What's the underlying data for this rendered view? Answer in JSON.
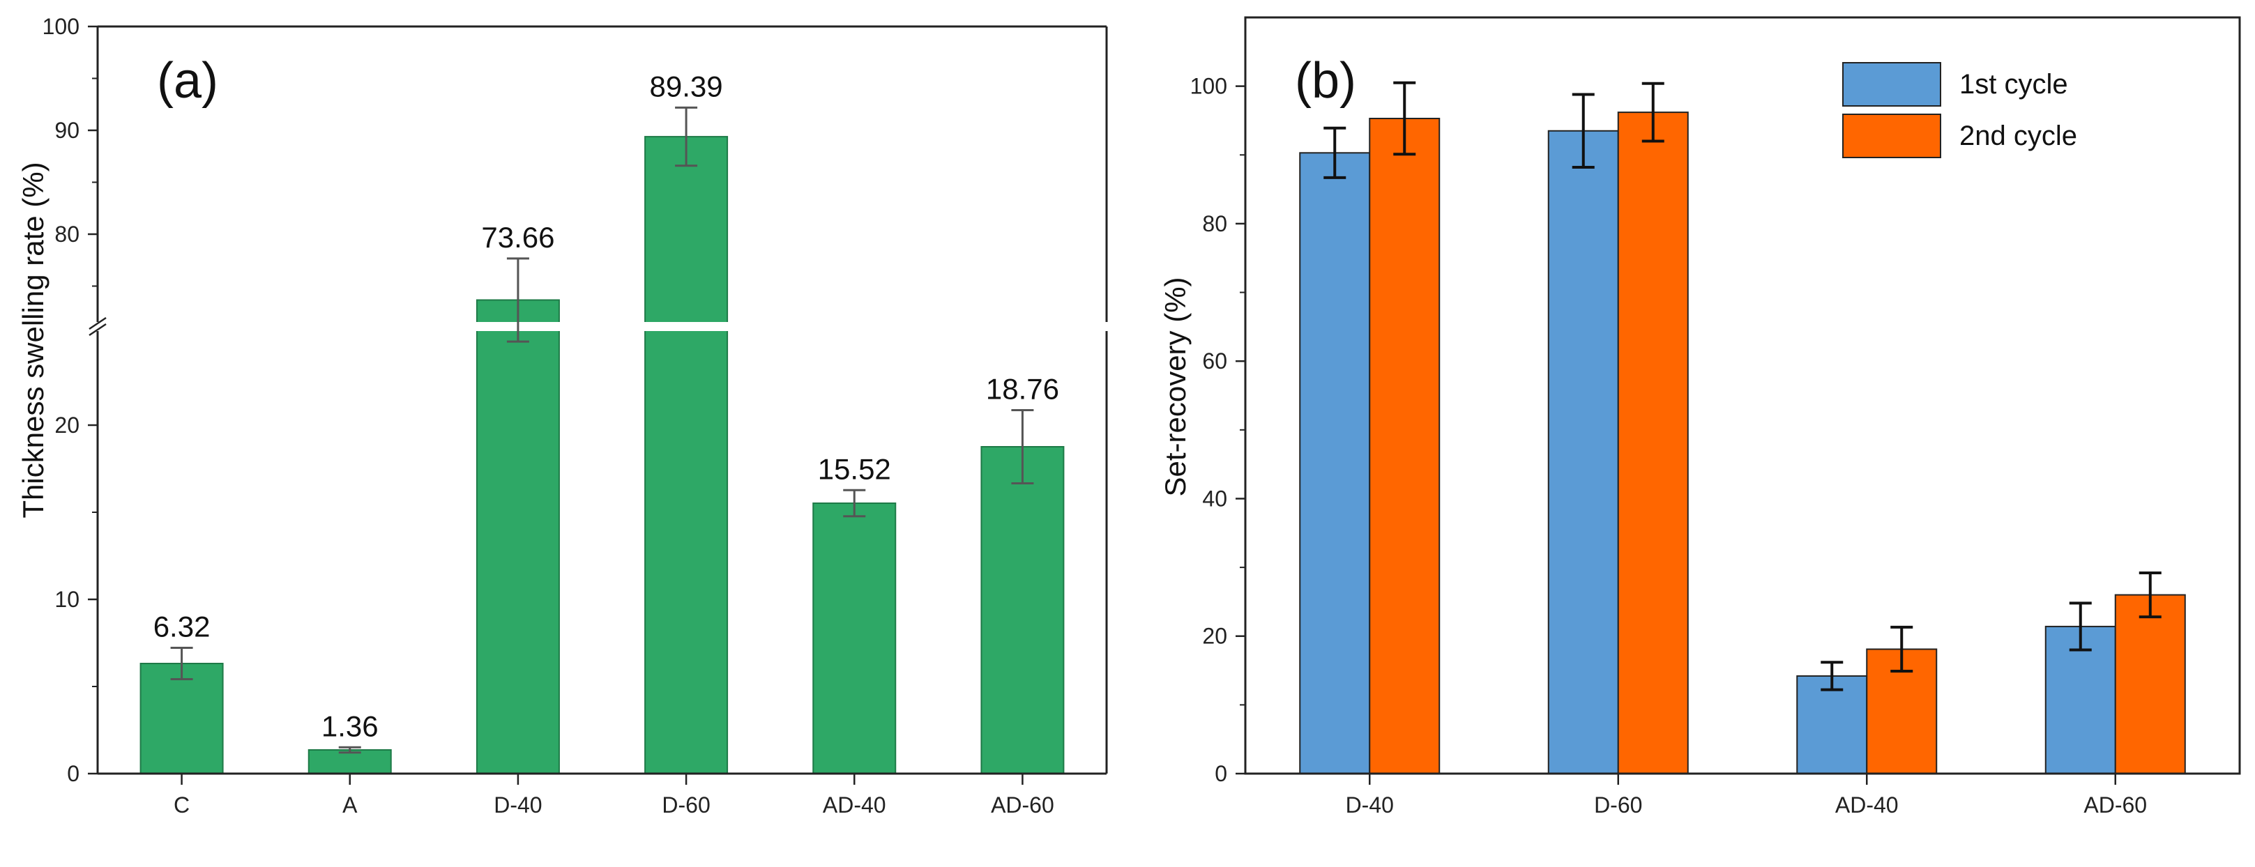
{
  "chart_data": [
    {
      "type": "bar",
      "panel_label": "(a)",
      "title": "",
      "xlabel": "",
      "ylabel": "Thickness swelling rate (%)",
      "categories": [
        "C",
        "A",
        "D-40",
        "D-60",
        "AD-40",
        "AD-60"
      ],
      "values": [
        6.32,
        1.36,
        73.66,
        89.39,
        15.52,
        18.76
      ],
      "errors": [
        0.9,
        0.15,
        4.0,
        2.8,
        0.75,
        2.1
      ],
      "value_labels": [
        "6.32",
        "1.36",
        "73.66",
        "89.39",
        "15.52",
        "18.76"
      ],
      "y_axis_break": {
        "lower_range": [
          0,
          25
        ],
        "upper_range": [
          70,
          100
        ]
      },
      "y_ticks_lower": [
        0,
        10,
        20
      ],
      "y_ticks_upper": [
        80,
        90,
        100
      ],
      "y_tick_labels_lower": [
        "0",
        "10",
        "20"
      ],
      "y_tick_labels_upper": [
        "80",
        "90",
        "100"
      ],
      "bar_color": "#2ea866",
      "grid": false
    },
    {
      "type": "bar",
      "panel_label": "(b)",
      "title": "",
      "xlabel": "",
      "ylabel": "Set-recovery (%)",
      "categories": [
        "D-40",
        "D-60",
        "AD-40",
        "AD-60"
      ],
      "series": [
        {
          "name": "1st cycle",
          "values": [
            90.3,
            93.5,
            14.2,
            21.4
          ],
          "errors": [
            3.6,
            5.3,
            2.0,
            3.4
          ],
          "color": "#5b9bd5"
        },
        {
          "name": "2nd cycle",
          "values": [
            95.3,
            96.2,
            18.1,
            26.0
          ],
          "errors": [
            5.2,
            4.2,
            3.2,
            3.2
          ],
          "color": "#ff6600"
        }
      ],
      "ylim": [
        0,
        110
      ],
      "y_ticks": [
        0,
        20,
        40,
        60,
        80,
        100
      ],
      "y_tick_labels": [
        "0",
        "20",
        "40",
        "60",
        "80",
        "100"
      ],
      "legend_position": "top-right",
      "grid": false
    }
  ]
}
